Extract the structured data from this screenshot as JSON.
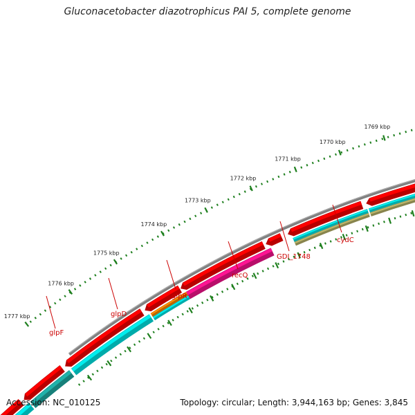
{
  "title": "Gluconacetobacter diazotrophicus PAI 5, complete genome",
  "accession": "Accession: NC_010125",
  "topology": "Topology: circular; Length: 3,944,163 bp; Genes: 3,845",
  "colors": {
    "backbone": "#808080",
    "forward_gene": "#ff0000",
    "reverse_gene": "#00eeee",
    "tick": "#1e7f1e",
    "gene_label": "#cc0000",
    "recq_feature": "#ff1493",
    "glpr_feature": "#ff8c00",
    "glpf_feature": "#20b2aa",
    "cydc_feature": "#bdb76b"
  },
  "ruler_labels": [
    "1777 kbp",
    "1776 kbp",
    "1775 kbp",
    "1774 kbp",
    "1773 kbp",
    "1772 kbp",
    "1771 kbp",
    "1770 kbp",
    "1769 kbp"
  ],
  "gene_labels": [
    "glpF",
    "glpD",
    "glpR",
    "recQ",
    "GDI_1748",
    "cydC"
  ]
}
